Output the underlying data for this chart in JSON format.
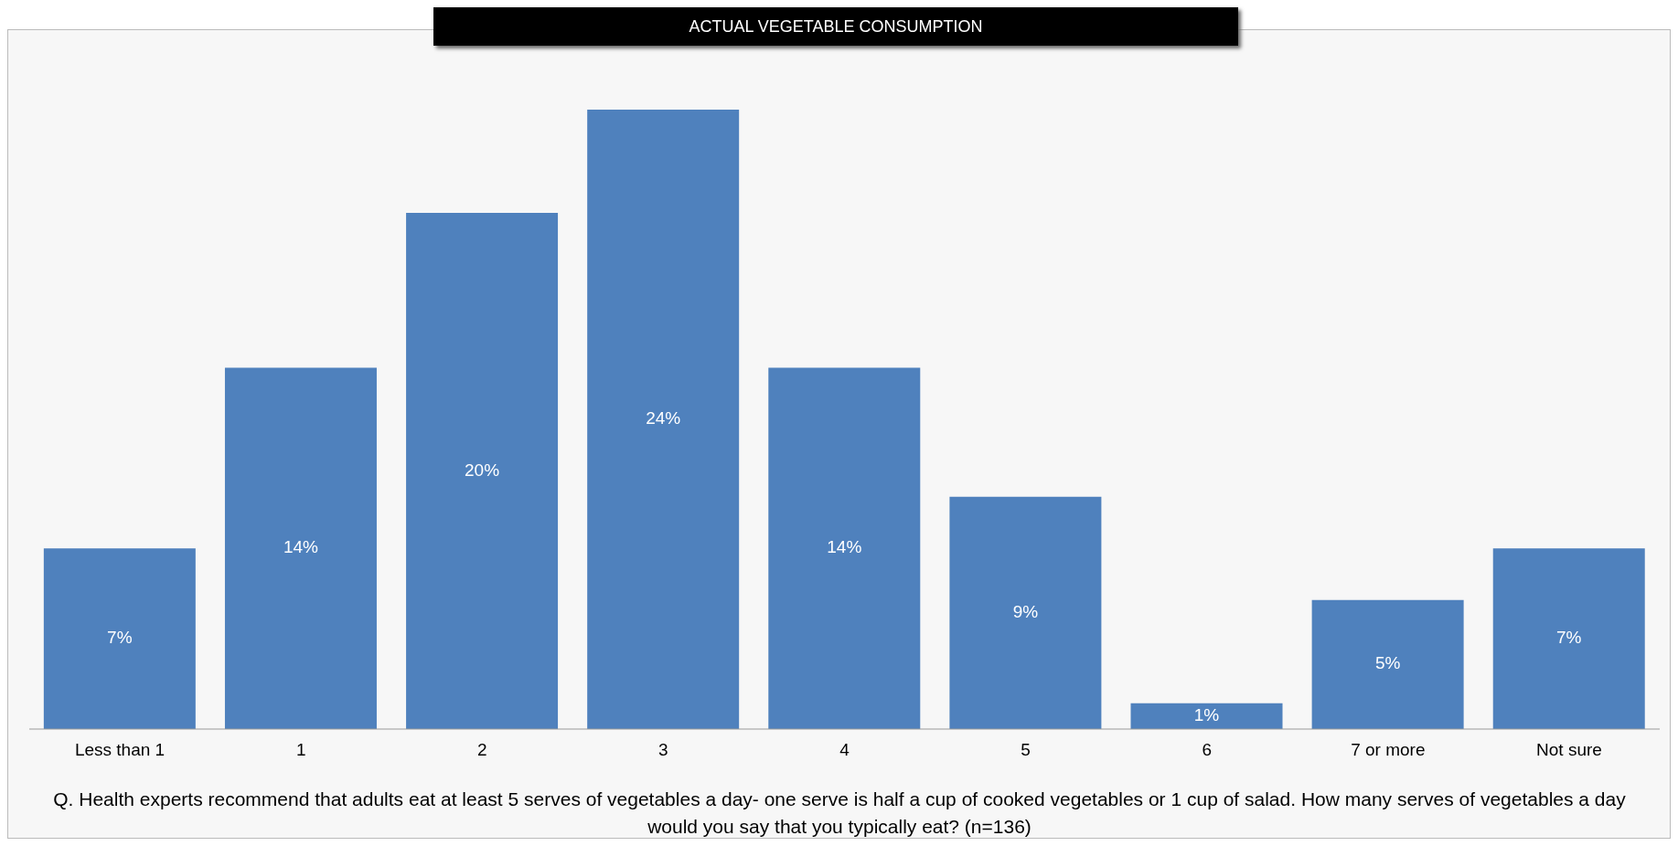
{
  "chart_data": {
    "type": "bar",
    "title": "ACTUAL VEGETABLE CONSUMPTION",
    "categories": [
      "Less than 1",
      "1",
      "2",
      "3",
      "4",
      "5",
      "6",
      "7 or more",
      "Not sure"
    ],
    "values": [
      7,
      14,
      20,
      24,
      14,
      9,
      1,
      5,
      7
    ],
    "value_labels": [
      "7%",
      "14%",
      "20%",
      "24%",
      "14%",
      "9%",
      "1%",
      "5%",
      "7%"
    ],
    "color": "#4f81bd",
    "grid": false,
    "legend": false,
    "annotations": [
      "Q. Health experts recommend that adults eat at least 5 serves of vegetables a day- one serve is half a cup of cooked vegetables or 1 cup of salad. How many serves of vegetables a day would you say that you typically eat? (n=136)"
    ]
  }
}
